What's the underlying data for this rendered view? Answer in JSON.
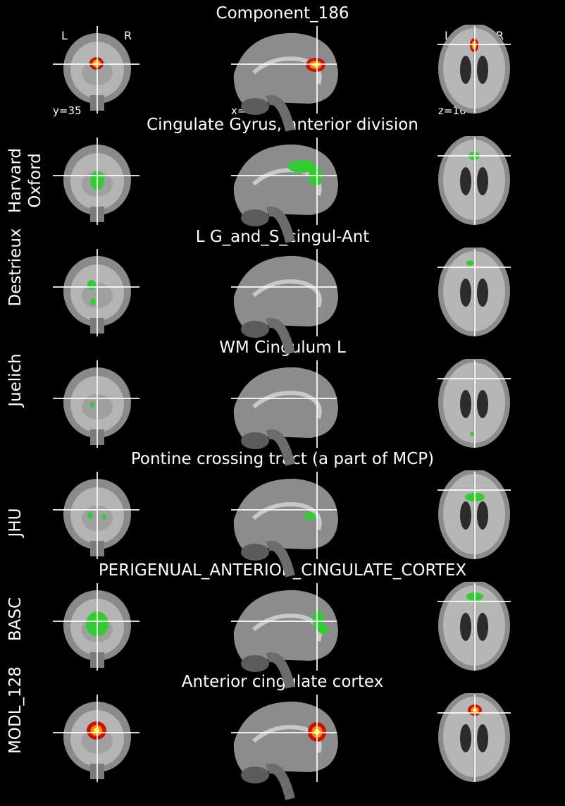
{
  "main_title": "Component_186",
  "orientation": {
    "left": "L",
    "right": "R"
  },
  "coords": {
    "coronal": "y=35",
    "sagittal": "x=0",
    "axial": "z=16"
  },
  "rows": [
    {
      "atlas": "",
      "region": "Component_186",
      "overlay": "heat"
    },
    {
      "atlas": "Harvard\nOxford",
      "region": "Cingulate Gyrus, anterior division",
      "overlay": "green"
    },
    {
      "atlas": "Destrieux",
      "region": "L G_and_S_cingul-Ant",
      "overlay": "green"
    },
    {
      "atlas": "Juelich",
      "region": "WM Cingulum L",
      "overlay": "green"
    },
    {
      "atlas": "JHU",
      "region": "Pontine crossing tract (a part of MCP)",
      "overlay": "green"
    },
    {
      "atlas": "BASC",
      "region": "PERIGENUAL_ANTERIOR_CINGULATE_CORTEX",
      "overlay": "green"
    },
    {
      "atlas": "MODL_128",
      "region": "Anterior cingulate cortex",
      "overlay": "heat"
    }
  ],
  "colors": {
    "background": "#000000",
    "overlay_green": "#33cc33",
    "heat_outer": "#cc1100",
    "heat_inner": "#ffee44",
    "crosshair": "#ffffff"
  }
}
